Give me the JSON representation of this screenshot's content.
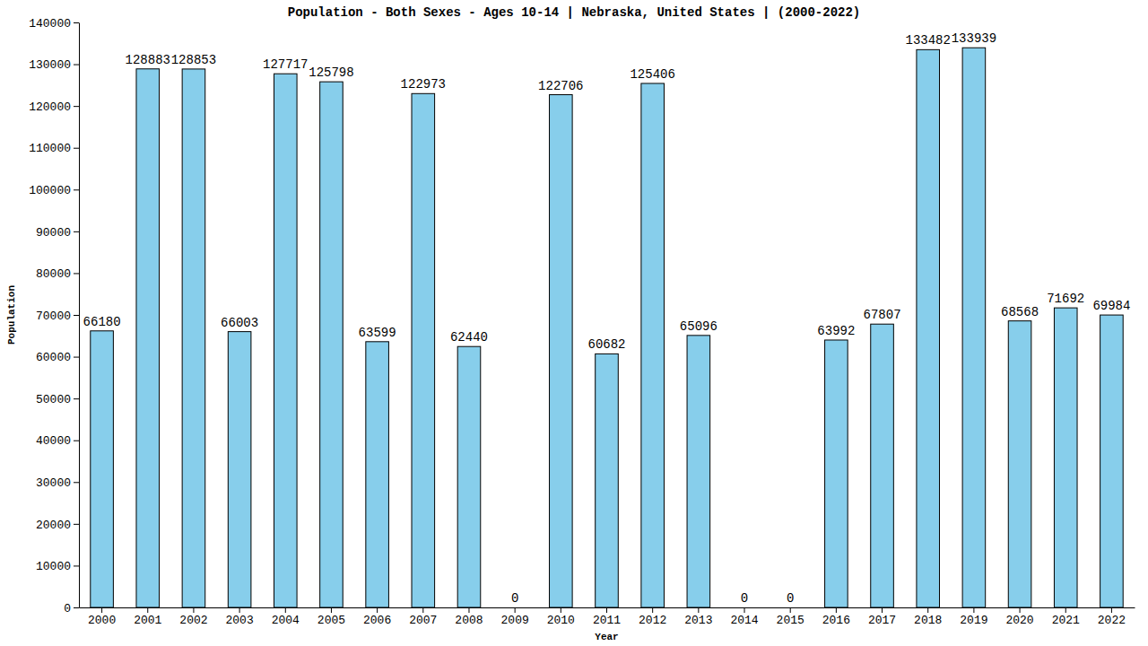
{
  "chart_data": {
    "type": "bar",
    "title": "Population - Both Sexes - Ages 10-14 | Nebraska, United States |  (2000-2022)",
    "x_label": "Year",
    "y_label": "Population",
    "categories": [
      "2000",
      "2001",
      "2002",
      "2003",
      "2004",
      "2005",
      "2006",
      "2007",
      "2008",
      "2009",
      "2010",
      "2011",
      "2012",
      "2013",
      "2014",
      "2015",
      "2016",
      "2017",
      "2018",
      "2019",
      "2020",
      "2021",
      "2022"
    ],
    "values": [
      66180,
      128883,
      128853,
      66003,
      127717,
      125798,
      63599,
      122973,
      62440,
      0,
      122706,
      60682,
      125406,
      65096,
      0,
      0,
      63992,
      67807,
      133482,
      133939,
      68568,
      71692,
      69984
    ],
    "color": "#87ceeb",
    "ylim": [
      0,
      140000
    ],
    "yticks": [
      0,
      10000,
      20000,
      30000,
      40000,
      50000,
      60000,
      70000,
      80000,
      90000,
      100000,
      110000,
      120000,
      130000,
      140000
    ],
    "grid": false,
    "data_labels": true
  }
}
